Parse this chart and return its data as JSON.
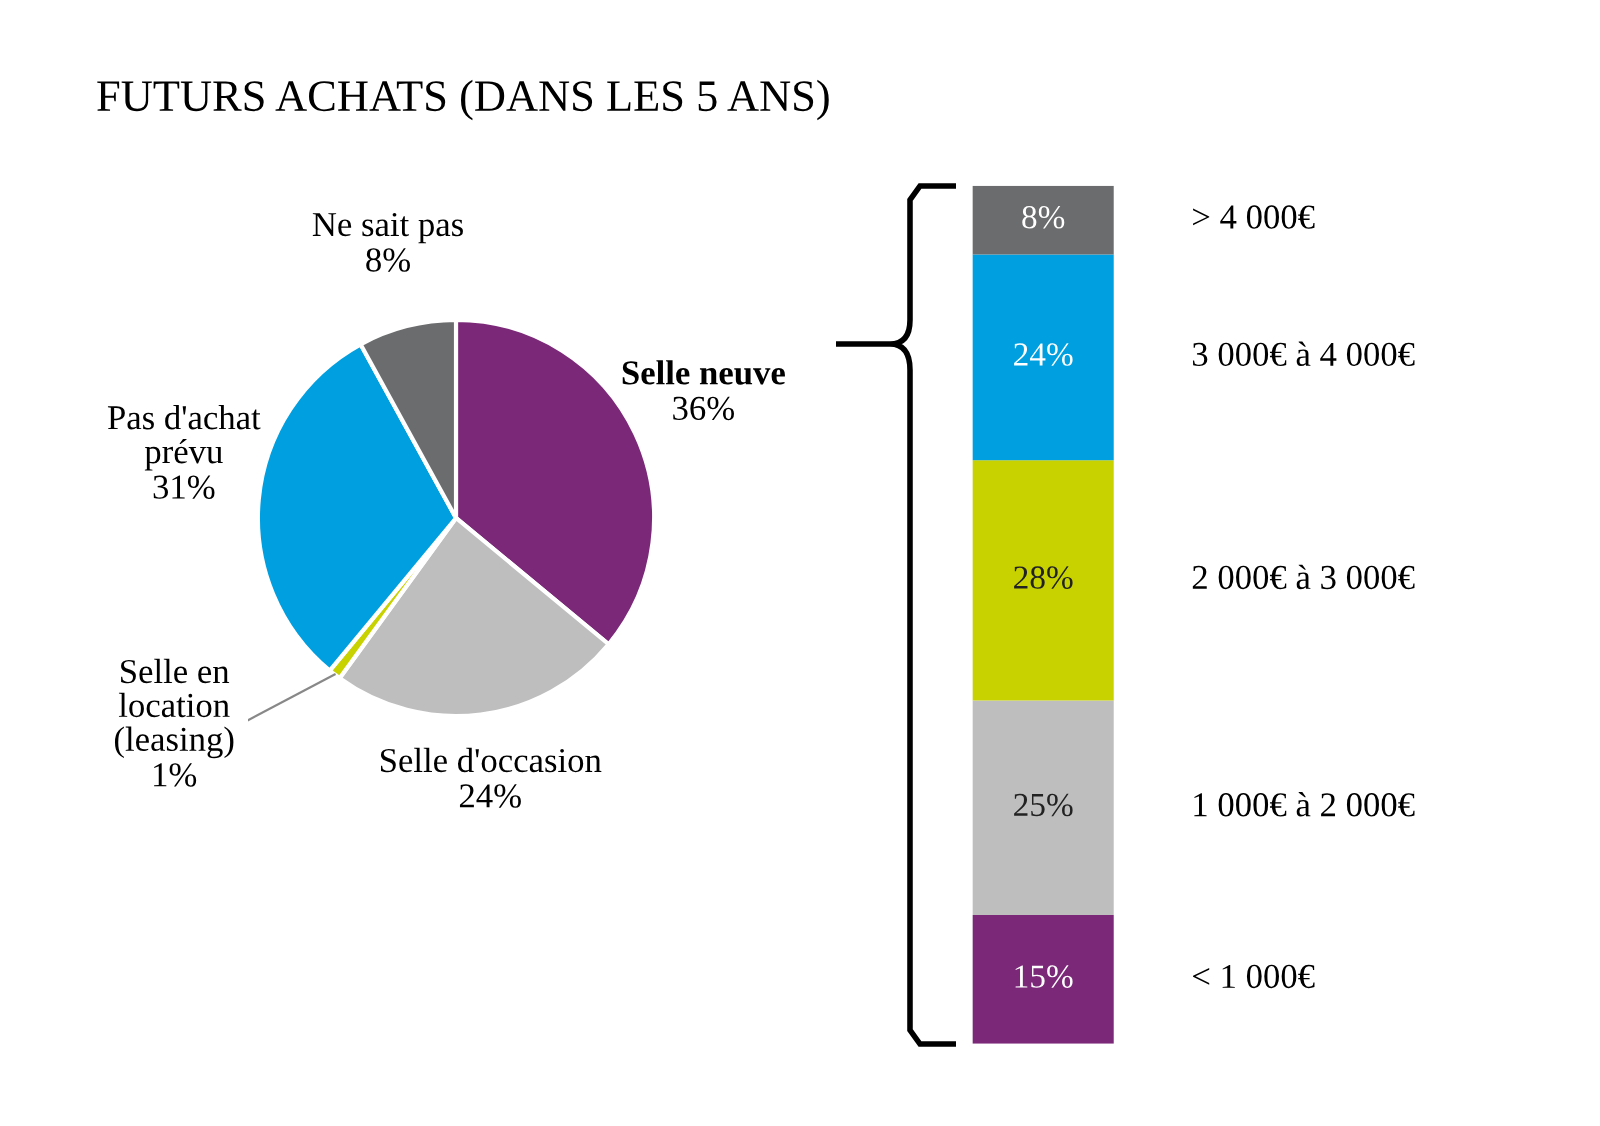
{
  "chart_data": [
    {
      "type": "pie",
      "title": "FUTURS ACHATS (DANS LES 5 ANS)",
      "categories": [
        "Selle neuve",
        "Selle d'occasion",
        "Selle en\nlocation\n(leasing)",
        "Pas d'achat\nprévu",
        "Ne sait pas"
      ],
      "values": [
        36,
        24,
        1,
        31,
        8
      ],
      "value_labels": [
        "36%",
        "24%",
        "1%",
        "31%",
        "8%"
      ],
      "colors": [
        "#7b2878",
        "#bebebe",
        "#c8d200",
        "#009fe0",
        "#6b6c6e"
      ]
    },
    {
      "type": "bar",
      "stacked": true,
      "categories": [
        null
      ],
      "series": [
        {
          "name": "< 1 000€",
          "color": "#7b2878",
          "values": [
            15
          ],
          "value_labels": [
            "15%"
          ]
        },
        {
          "name": "1 000€ à 2 000€",
          "color": "#bebebe",
          "values": [
            25
          ],
          "value_labels": [
            "25%"
          ]
        },
        {
          "name": "2 000€ à 3 000€",
          "color": "#c8d200",
          "values": [
            28
          ],
          "value_labels": [
            "28%"
          ]
        },
        {
          "name": "3 000€ à 4 000€",
          "color": "#009fe0",
          "values": [
            24
          ],
          "value_labels": [
            "24%"
          ]
        },
        {
          "name": "> 4 000€",
          "color": "#6b6c6e",
          "values": [
            8
          ],
          "value_labels": [
            "8%"
          ]
        }
      ]
    }
  ]
}
